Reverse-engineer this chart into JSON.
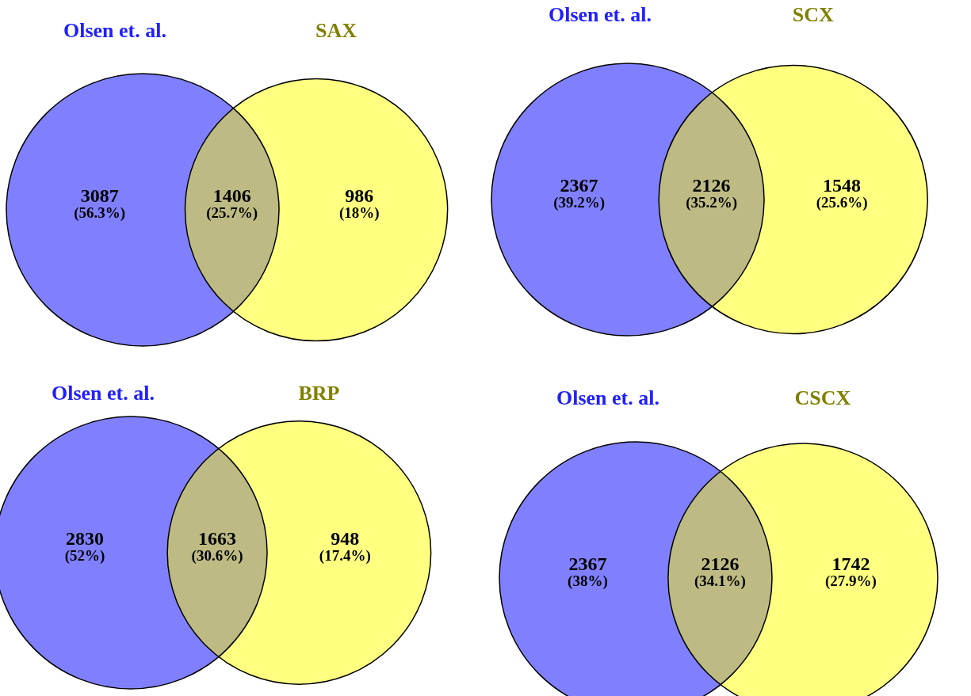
{
  "chart_data": [
    {
      "type": "other",
      "categories": [
        null,
        null,
        null
      ],
      "values": [
        3087,
        1406,
        986
      ],
      "data_labels": true,
      "colors": [
        "#8080ff",
        "#bdbb83",
        "#ffff80"
      ],
      "annotations": [
        "Olsen et. al.",
        "SAX",
        "(56.3%)",
        "(25.7%)",
        "(18%)"
      ]
    },
    {
      "type": "other",
      "categories": [
        null,
        null,
        null
      ],
      "values": [
        2367,
        2126,
        1548
      ],
      "data_labels": true,
      "colors": [
        "#8080ff",
        "#bdbb83",
        "#ffff80"
      ],
      "annotations": [
        "Olsen et. al.",
        "SCX",
        "(39.2%)",
        "(35.2%)",
        "(25.6%)"
      ]
    },
    {
      "type": "other",
      "categories": [
        null,
        null,
        null
      ],
      "values": [
        2830,
        1663,
        948
      ],
      "data_labels": true,
      "colors": [
        "#8080ff",
        "#bdbb83",
        "#ffff80"
      ],
      "annotations": [
        "Olsen et. al.",
        "BRP",
        "(52%)",
        "(30.6%)",
        "(17.4%)"
      ]
    },
    {
      "type": "other",
      "categories": [
        null,
        null,
        null
      ],
      "values": [
        2367,
        2126,
        1742
      ],
      "data_labels": true,
      "colors": [
        "#8080ff",
        "#bdbb83",
        "#ffff80"
      ],
      "annotations": [
        "Olsen et. al.",
        "CSCX",
        "(38%)",
        "(34.1%)",
        "(27.9%)"
      ]
    }
  ]
}
